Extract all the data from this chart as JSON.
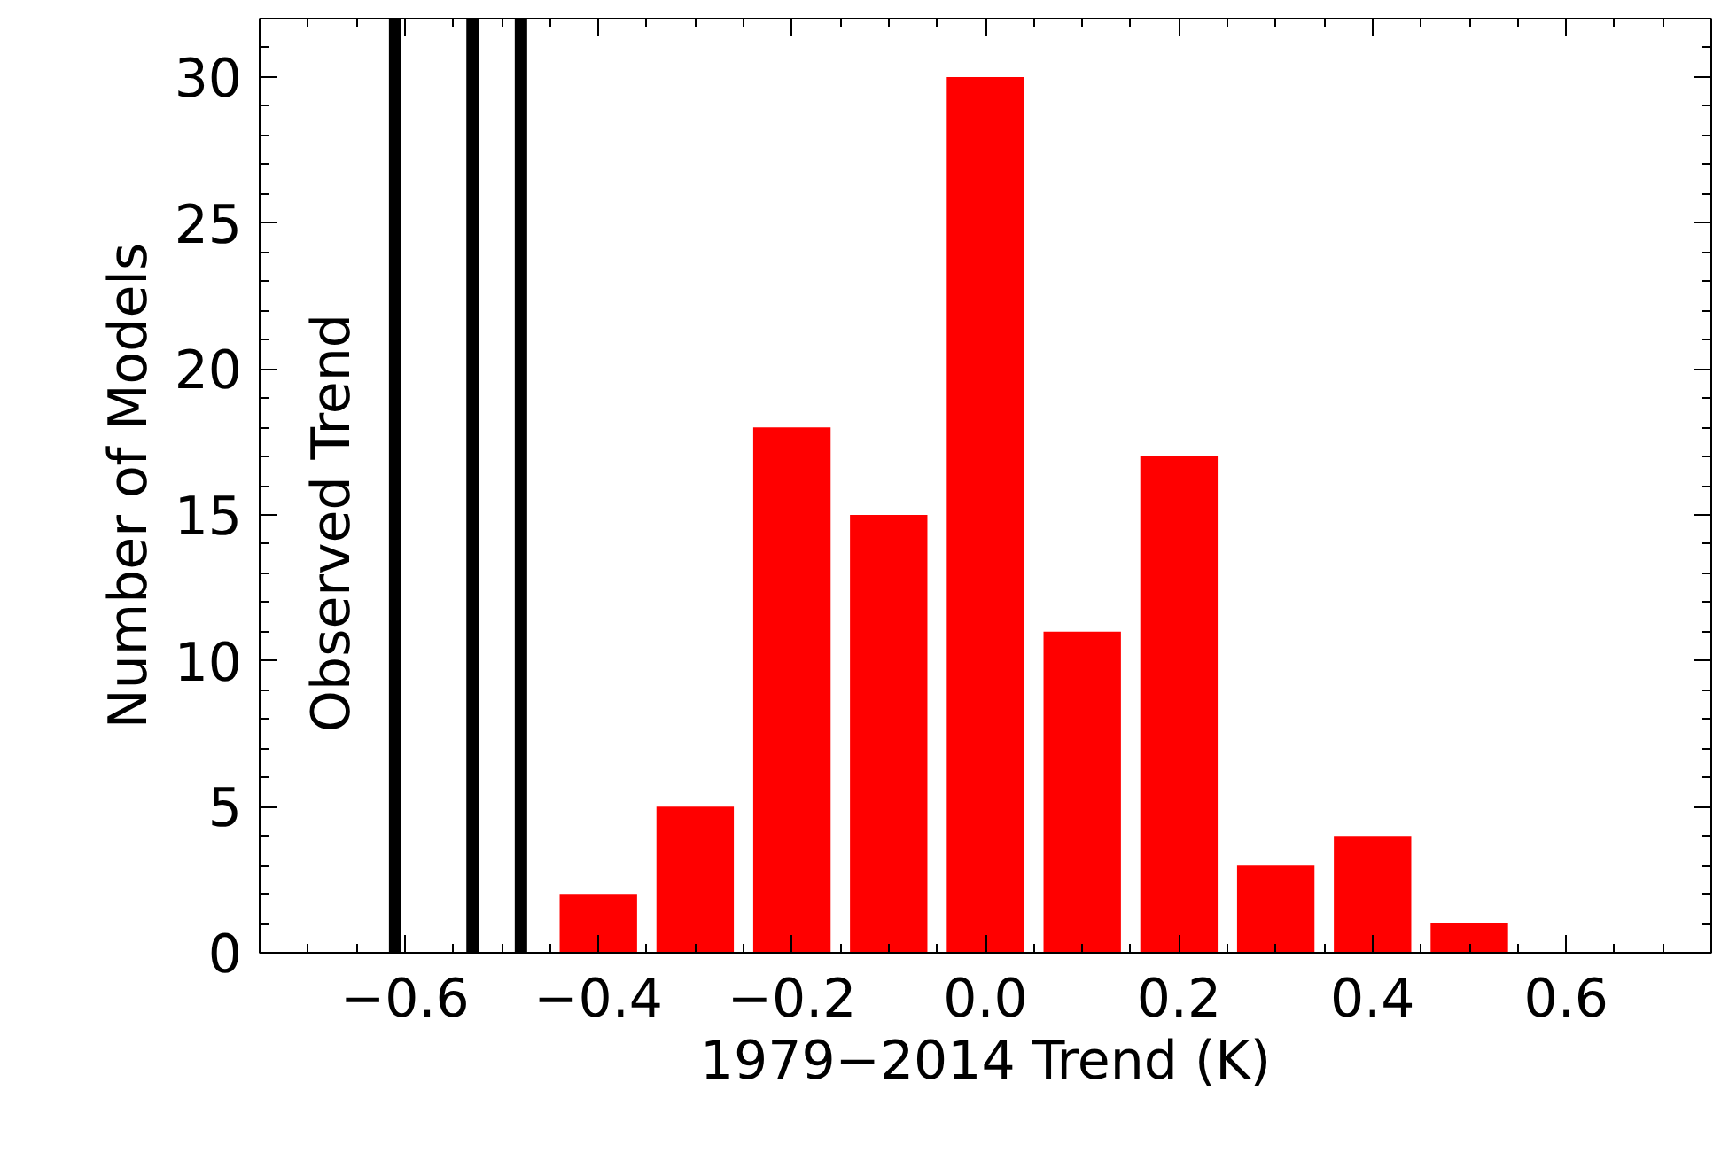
{
  "chart_data": {
    "type": "histogram",
    "xlabel": "1979−2014 Trend (K)",
    "ylabel": "Number of Models",
    "bins": [
      -0.45,
      -0.35,
      -0.25,
      -0.15,
      -0.05,
      0.05,
      0.15,
      0.25,
      0.35,
      0.45,
      0.55
    ],
    "values": [
      2,
      5,
      18,
      15,
      30,
      11,
      17,
      3,
      4,
      1
    ],
    "color": "#ff0000",
    "xlim": [
      -0.75,
      0.75
    ],
    "xticks": [
      {
        "value": -0.6,
        "label": "−0.6"
      },
      {
        "value": -0.4,
        "label": "−0.4"
      },
      {
        "value": -0.2,
        "label": "−0.2"
      },
      {
        "value": 0.0,
        "label": "0.0"
      },
      {
        "value": 0.2,
        "label": "0.2"
      },
      {
        "value": 0.4,
        "label": "0.4"
      },
      {
        "value": 0.6,
        "label": "0.6"
      }
    ],
    "ylim": [
      0,
      32
    ],
    "yticks": [
      0,
      5,
      10,
      15,
      20,
      25,
      30
    ],
    "ref_lines": [
      {
        "axis": "x",
        "value": -0.61,
        "color": "#000000"
      },
      {
        "axis": "x",
        "value": -0.53,
        "color": "#000000"
      },
      {
        "axis": "x",
        "value": -0.48,
        "color": "#000000"
      }
    ],
    "annotations": [
      "Observed Trend"
    ],
    "grid": false
  }
}
